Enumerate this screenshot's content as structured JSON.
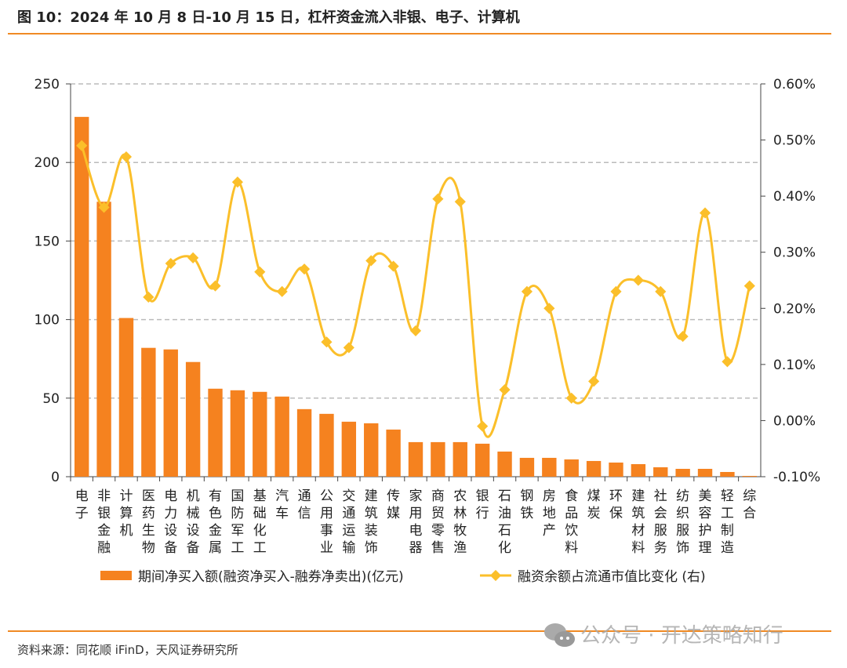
{
  "title": "图 10：2024 年 10 月 8 日-10 月 15 日，杠杆资金流入非银、电子、计算机",
  "source": "资料来源：同花顺 iFinD，天风证券研究所",
  "watermark": "公众号 · 开达策略知行",
  "colors": {
    "bar": "#f5821f",
    "line": "#fbbf2a",
    "rule": "#f08a24"
  },
  "chart_data": {
    "type": "bar+line",
    "categories": [
      "电子",
      "非银金融",
      "计算机",
      "医药生物",
      "电力设备",
      "机械设备",
      "有色金属",
      "国防军工",
      "基础化工",
      "汽车",
      "通信",
      "公用事业",
      "交通运输",
      "建筑装饰",
      "传媒",
      "家用电器",
      "商贸零售",
      "农林牧渔",
      "银行",
      "石油石化",
      "钢铁",
      "房地产",
      "食品饮料",
      "煤炭",
      "环保",
      "建筑材料",
      "社会服务",
      "纺织服饰",
      "美容护理",
      "轻工制造",
      "综合"
    ],
    "series": [
      {
        "name": "期间净买入额(融资净买入-融券净卖出)(亿元)",
        "type": "bar",
        "axis": "left",
        "values": [
          229,
          175,
          101,
          82,
          81,
          73,
          56,
          55,
          54,
          51,
          43,
          40,
          35,
          34,
          30,
          22,
          22,
          22,
          21,
          16,
          12,
          12,
          11,
          10,
          9,
          8,
          6,
          5,
          5,
          3,
          0.5
        ]
      },
      {
        "name": "融资余额占流通市值比变化 (右)",
        "type": "line",
        "axis": "right",
        "unit": "%",
        "values": [
          0.49,
          0.38,
          0.47,
          0.22,
          0.28,
          0.29,
          0.24,
          0.425,
          0.265,
          0.23,
          0.27,
          0.14,
          0.13,
          0.285,
          0.275,
          0.16,
          0.395,
          0.39,
          -0.01,
          0.055,
          0.23,
          0.2,
          0.04,
          0.07,
          0.23,
          0.25,
          0.23,
          0.15,
          0.37,
          0.105,
          0.24
        ]
      }
    ],
    "left_axis": {
      "ylim": [
        0,
        250
      ],
      "ticks": [
        "0",
        "50",
        "100",
        "150",
        "200",
        "250"
      ]
    },
    "right_axis": {
      "ylim": [
        -0.1,
        0.6
      ],
      "ticks": [
        "-0.10%",
        "0.00%",
        "0.10%",
        "0.20%",
        "0.30%",
        "0.40%",
        "0.50%",
        "0.60%"
      ]
    },
    "grid": "horizontal dashed",
    "legend": "bottom"
  }
}
